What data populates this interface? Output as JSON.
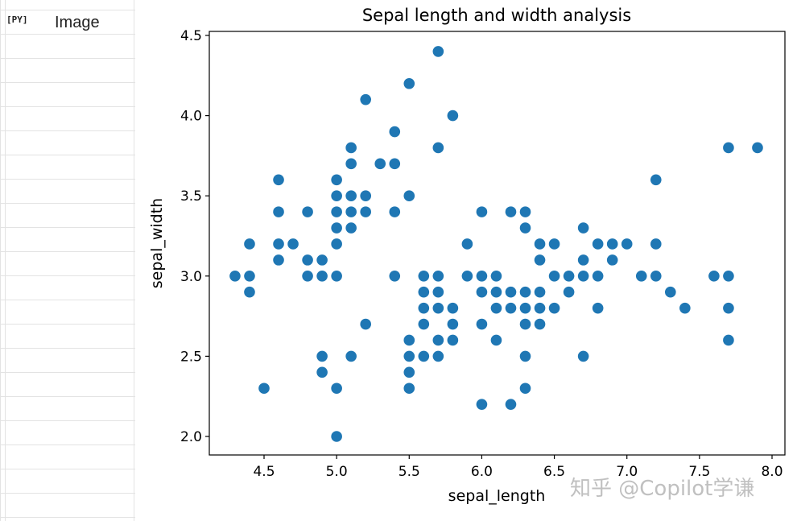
{
  "cell": {
    "badge": "[PY]",
    "label": "Image"
  },
  "watermark": "知乎 @Copilot学谦",
  "colors": {
    "marker": "#1f77b4",
    "axes": "#000000"
  },
  "chart_data": {
    "type": "scatter",
    "title": "Sepal length and width analysis",
    "xlabel": "sepal_length",
    "ylabel": "sepal_width",
    "xlim": [
      4.3,
      7.9
    ],
    "ylim": [
      2.0,
      4.4
    ],
    "xticks": [
      4.5,
      5.0,
      5.5,
      6.0,
      6.5,
      7.0,
      7.5,
      8.0
    ],
    "yticks": [
      2.0,
      2.5,
      3.0,
      3.5,
      4.0,
      4.5
    ],
    "grid": false,
    "points": [
      [
        4.3,
        3.0
      ],
      [
        4.4,
        3.2
      ],
      [
        4.4,
        3.0
      ],
      [
        4.4,
        2.9
      ],
      [
        4.5,
        2.3
      ],
      [
        4.6,
        3.6
      ],
      [
        4.6,
        3.4
      ],
      [
        4.6,
        3.2
      ],
      [
        4.6,
        3.1
      ],
      [
        4.7,
        3.2
      ],
      [
        4.8,
        3.4
      ],
      [
        4.8,
        3.1
      ],
      [
        4.8,
        3.0
      ],
      [
        4.9,
        3.1
      ],
      [
        4.9,
        3.0
      ],
      [
        4.9,
        2.5
      ],
      [
        4.9,
        2.4
      ],
      [
        5.0,
        3.6
      ],
      [
        5.0,
        3.5
      ],
      [
        5.0,
        3.4
      ],
      [
        5.0,
        3.3
      ],
      [
        5.0,
        3.2
      ],
      [
        5.0,
        3.0
      ],
      [
        5.0,
        2.3
      ],
      [
        5.0,
        2.0
      ],
      [
        5.1,
        3.8
      ],
      [
        5.1,
        3.7
      ],
      [
        5.1,
        3.5
      ],
      [
        5.1,
        3.4
      ],
      [
        5.1,
        3.3
      ],
      [
        5.1,
        2.5
      ],
      [
        5.2,
        4.1
      ],
      [
        5.2,
        3.5
      ],
      [
        5.2,
        3.4
      ],
      [
        5.2,
        2.7
      ],
      [
        5.3,
        3.7
      ],
      [
        5.4,
        3.9
      ],
      [
        5.4,
        3.7
      ],
      [
        5.4,
        3.4
      ],
      [
        5.4,
        3.0
      ],
      [
        5.5,
        4.2
      ],
      [
        5.5,
        3.5
      ],
      [
        5.5,
        2.6
      ],
      [
        5.5,
        2.5
      ],
      [
        5.5,
        2.4
      ],
      [
        5.5,
        2.3
      ],
      [
        5.6,
        3.0
      ],
      [
        5.6,
        2.9
      ],
      [
        5.6,
        2.8
      ],
      [
        5.6,
        2.7
      ],
      [
        5.6,
        2.5
      ],
      [
        5.7,
        4.4
      ],
      [
        5.7,
        3.8
      ],
      [
        5.7,
        3.0
      ],
      [
        5.7,
        2.9
      ],
      [
        5.7,
        2.8
      ],
      [
        5.7,
        2.6
      ],
      [
        5.7,
        2.5
      ],
      [
        5.8,
        4.0
      ],
      [
        5.8,
        2.8
      ],
      [
        5.8,
        2.7
      ],
      [
        5.8,
        2.6
      ],
      [
        5.9,
        3.2
      ],
      [
        5.9,
        3.0
      ],
      [
        6.0,
        3.4
      ],
      [
        6.0,
        3.0
      ],
      [
        6.0,
        2.9
      ],
      [
        6.0,
        2.7
      ],
      [
        6.0,
        2.2
      ],
      [
        6.1,
        3.0
      ],
      [
        6.1,
        2.9
      ],
      [
        6.1,
        2.8
      ],
      [
        6.1,
        2.6
      ],
      [
        6.2,
        3.4
      ],
      [
        6.2,
        2.9
      ],
      [
        6.2,
        2.8
      ],
      [
        6.2,
        2.2
      ],
      [
        6.3,
        3.4
      ],
      [
        6.3,
        3.3
      ],
      [
        6.3,
        2.9
      ],
      [
        6.3,
        2.8
      ],
      [
        6.3,
        2.7
      ],
      [
        6.3,
        2.5
      ],
      [
        6.3,
        2.3
      ],
      [
        6.4,
        3.2
      ],
      [
        6.4,
        3.1
      ],
      [
        6.4,
        2.9
      ],
      [
        6.4,
        2.8
      ],
      [
        6.4,
        2.7
      ],
      [
        6.5,
        3.2
      ],
      [
        6.5,
        3.0
      ],
      [
        6.5,
        2.8
      ],
      [
        6.6,
        3.0
      ],
      [
        6.6,
        2.9
      ],
      [
        6.7,
        3.3
      ],
      [
        6.7,
        3.1
      ],
      [
        6.7,
        3.0
      ],
      [
        6.7,
        2.5
      ],
      [
        6.8,
        3.2
      ],
      [
        6.8,
        3.0
      ],
      [
        6.8,
        2.8
      ],
      [
        6.9,
        3.2
      ],
      [
        6.9,
        3.1
      ],
      [
        7.0,
        3.2
      ],
      [
        7.1,
        3.0
      ],
      [
        7.2,
        3.6
      ],
      [
        7.2,
        3.2
      ],
      [
        7.2,
        3.0
      ],
      [
        7.3,
        2.9
      ],
      [
        7.4,
        2.8
      ],
      [
        7.6,
        3.0
      ],
      [
        7.7,
        3.8
      ],
      [
        7.7,
        3.0
      ],
      [
        7.7,
        2.8
      ],
      [
        7.7,
        2.6
      ],
      [
        7.9,
        3.8
      ]
    ]
  }
}
